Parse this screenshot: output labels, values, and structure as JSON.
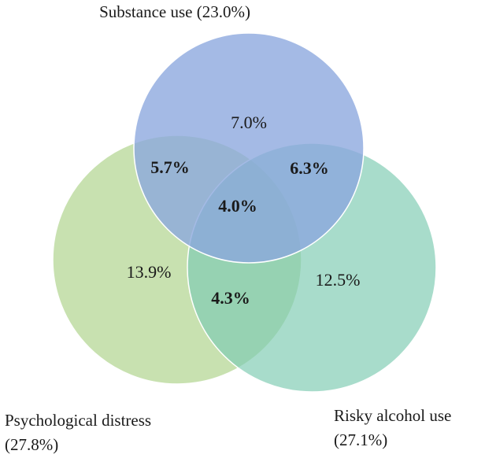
{
  "sets": [
    {
      "id": "substance",
      "label": "Substance use (23.0%)",
      "color": "#8da8df"
    },
    {
      "id": "distress",
      "label": "Psychological distress",
      "label_line2": "(27.8%)",
      "color": "#b3d691"
    },
    {
      "id": "alcohol",
      "label": "Risky alcohol use",
      "label_line2": "(27.1%)",
      "color": "#8fd2bd"
    }
  ],
  "regions": {
    "substance_only": "7.0%",
    "distress_only": "13.9%",
    "alcohol_only": "12.5%",
    "substance_distress": "5.7%",
    "substance_alcohol": "6.3%",
    "distress_alcohol": "4.3%",
    "all_three": "4.0%"
  }
}
